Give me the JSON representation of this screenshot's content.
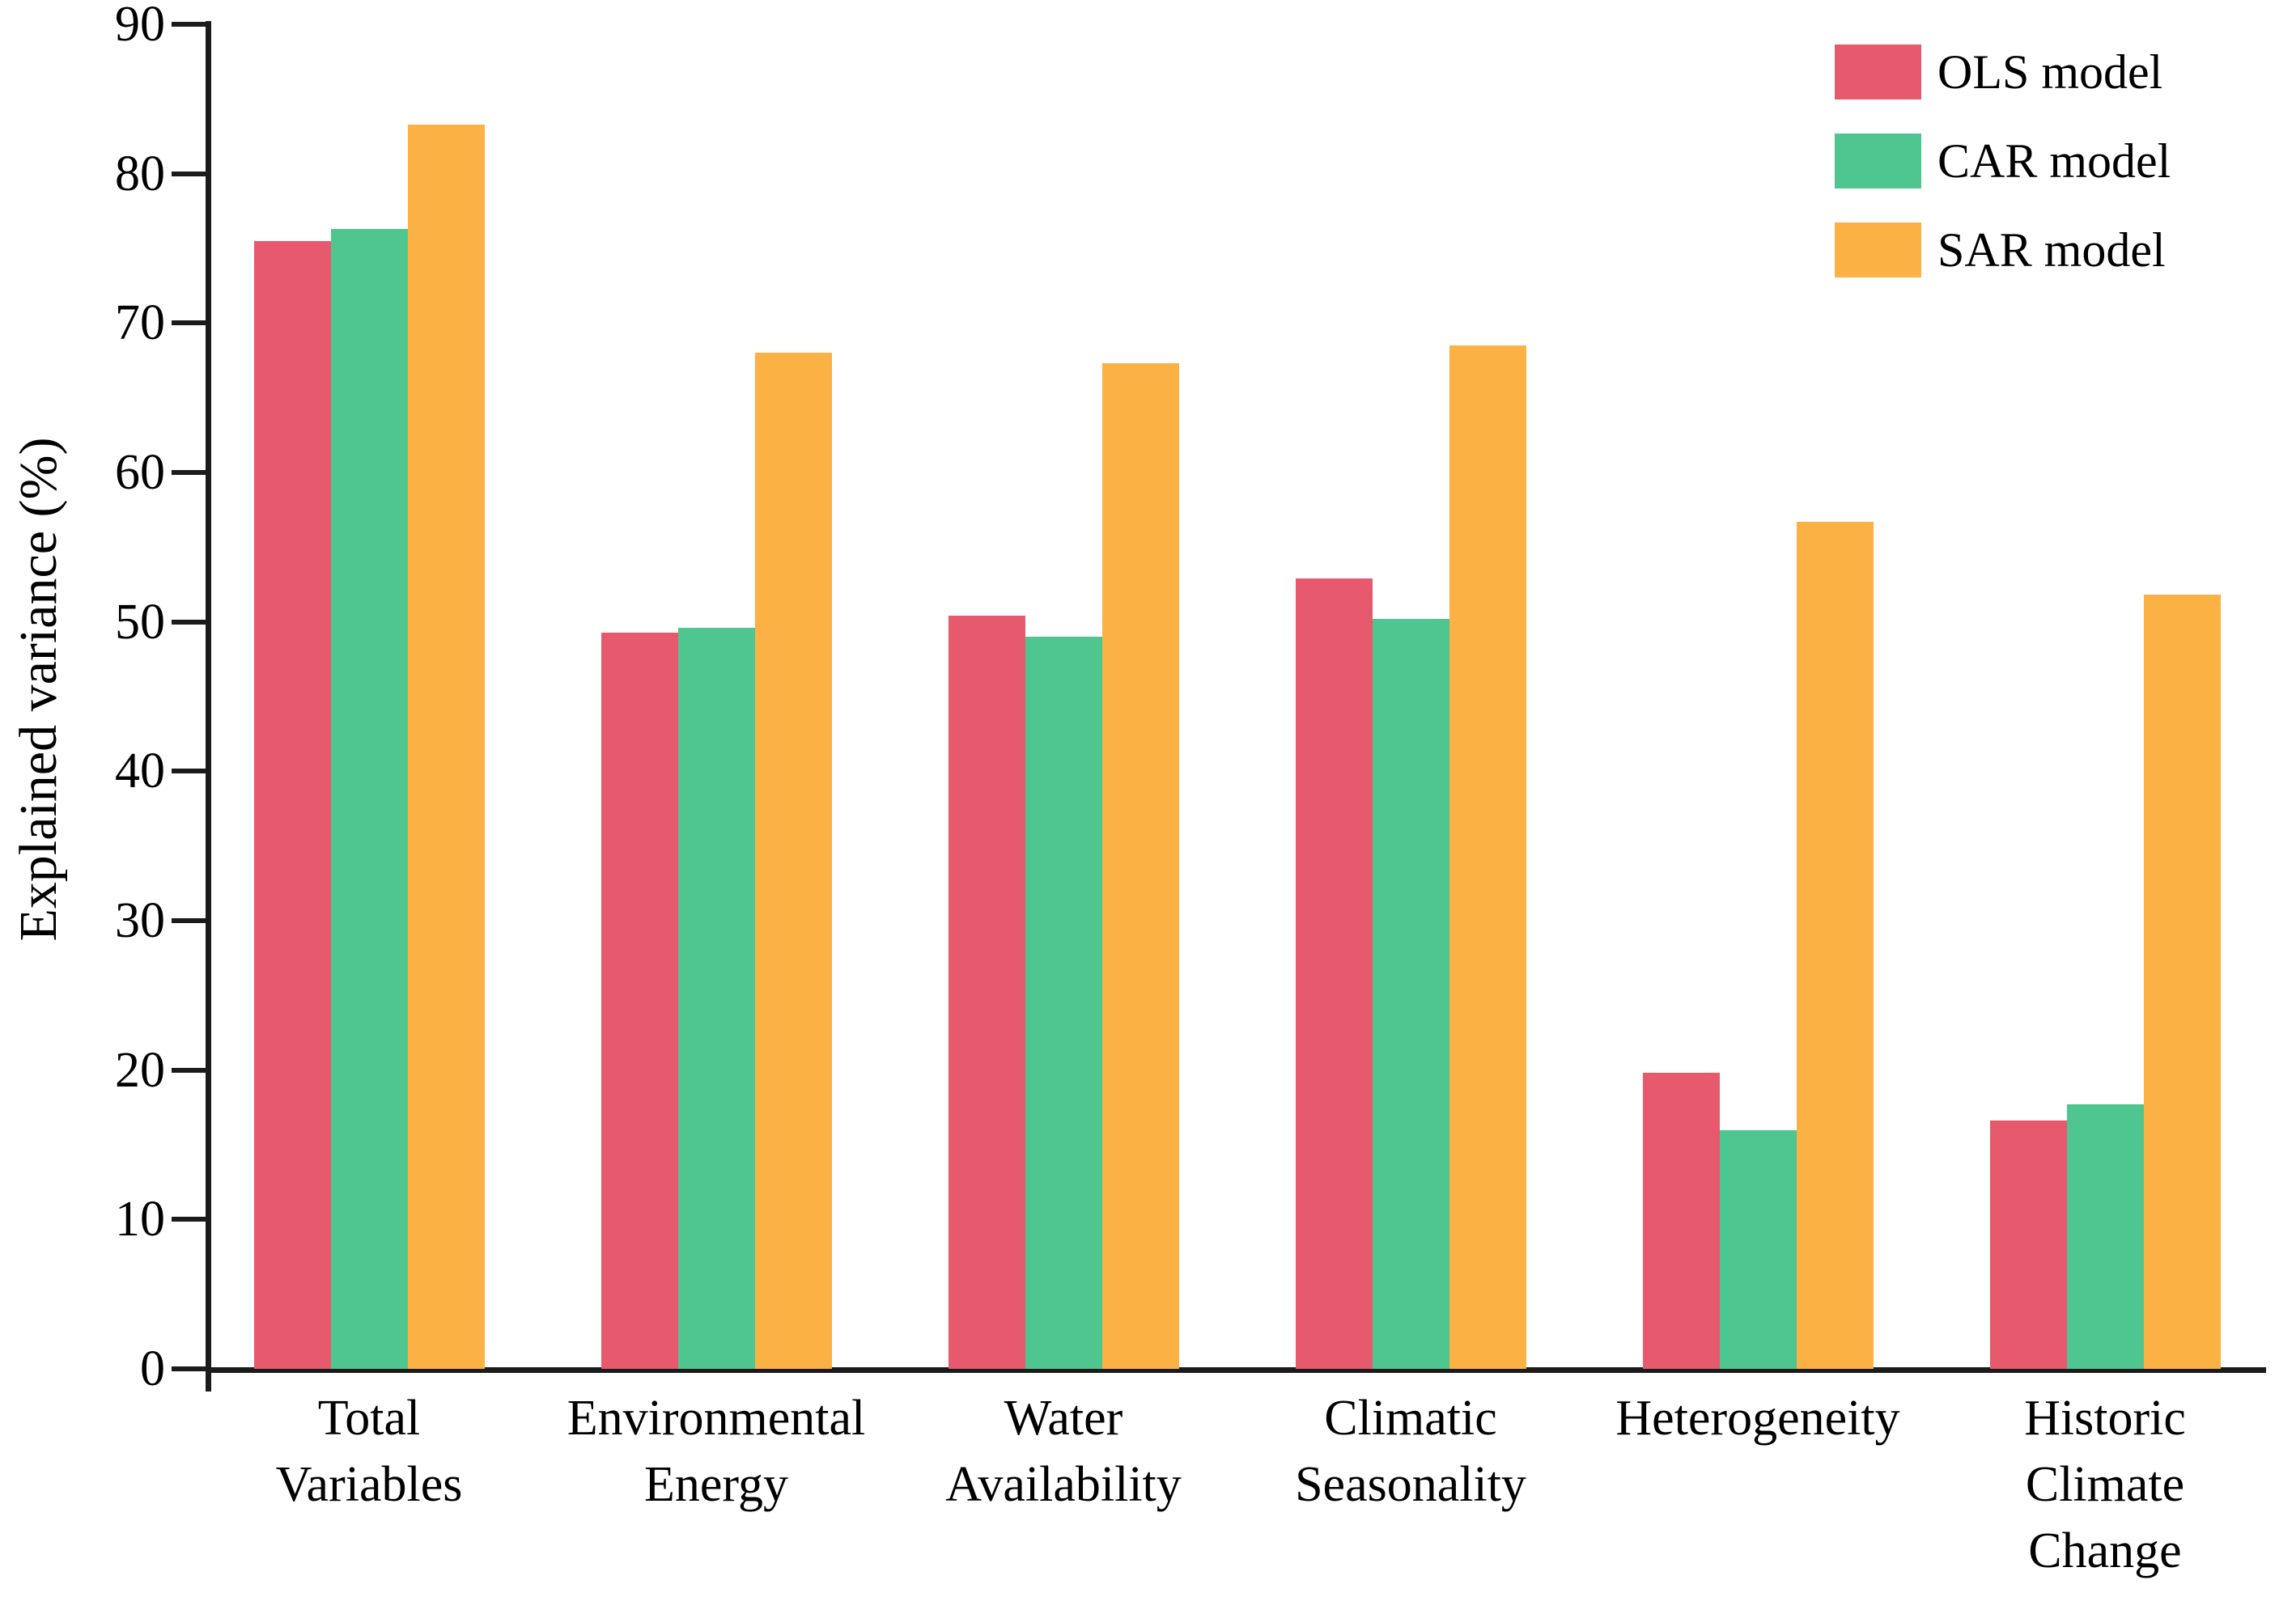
{
  "chart_data": {
    "type": "bar",
    "title": "",
    "xlabel": "",
    "ylabel": "Explained variance (%)",
    "ylim": [
      0,
      90
    ],
    "ytick_step": 10,
    "grid": false,
    "legend_position": "top-right",
    "categories": [
      "Total\nVariables",
      "Environmental\nEnergy",
      "Water\nAvailability",
      "Climatic\nSeasonality",
      "Heterogeneity",
      "Historic\nClimate\nChange"
    ],
    "series": [
      {
        "name": "OLS model",
        "color": "#E75A6E",
        "values": [
          75.5,
          49.3,
          50.4,
          52.9,
          19.8,
          16.6
        ]
      },
      {
        "name": "CAR model",
        "color": "#4FC690",
        "values": [
          76.3,
          49.6,
          49.0,
          50.2,
          16.0,
          17.7
        ]
      },
      {
        "name": "SAR model",
        "color": "#FBB143",
        "values": [
          83.3,
          68.0,
          67.3,
          68.5,
          56.7,
          51.8
        ]
      }
    ],
    "axis_color": "#1b1b1b"
  }
}
